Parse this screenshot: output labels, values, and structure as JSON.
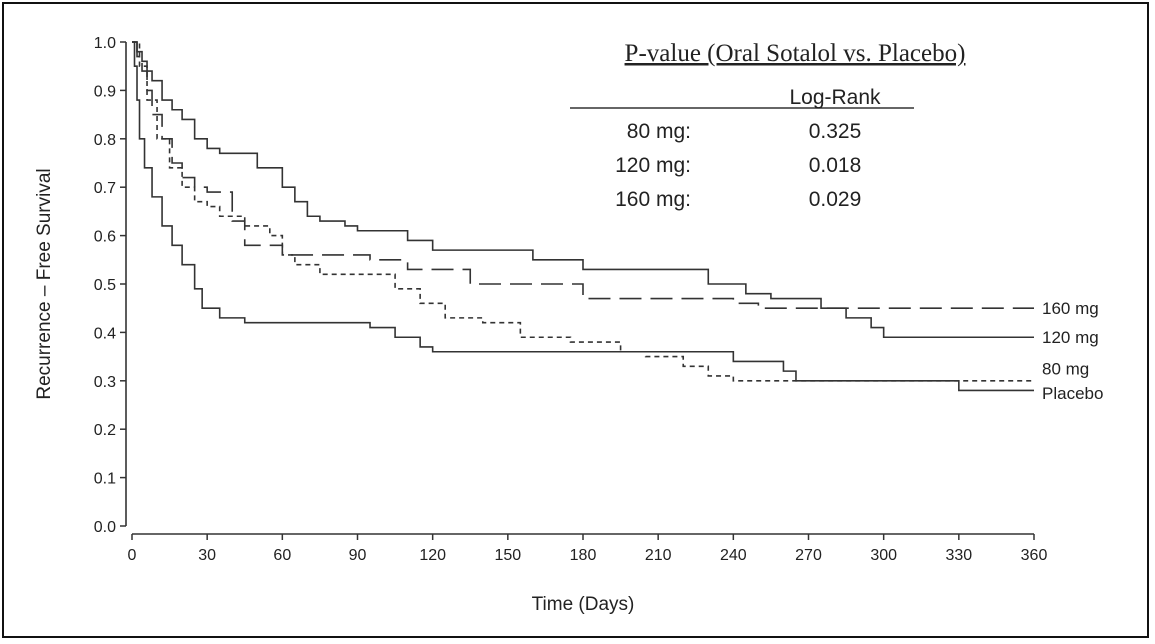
{
  "chart_data": {
    "type": "line",
    "title": "",
    "xlabel": "Time (Days)",
    "ylabel": "Recurrence – Free Survival",
    "xlim": [
      0,
      360
    ],
    "ylim": [
      0,
      1.0
    ],
    "xticks": [
      0,
      30,
      60,
      90,
      120,
      150,
      180,
      210,
      240,
      270,
      300,
      330,
      360
    ],
    "yticks": [
      "0.0",
      "0.1",
      "0.2",
      "0.3",
      "0.4",
      "0.5",
      "0.6",
      "0.7",
      "0.8",
      "0.9",
      "1.0"
    ],
    "grid": false,
    "legend": "end-of-line labels at right",
    "series": [
      {
        "name": "160 mg",
        "style": "long-dash",
        "points": [
          [
            0,
            1.0
          ],
          [
            2,
            0.97
          ],
          [
            4,
            0.94
          ],
          [
            6,
            0.9
          ],
          [
            8,
            0.85
          ],
          [
            12,
            0.8
          ],
          [
            16,
            0.75
          ],
          [
            20,
            0.72
          ],
          [
            25,
            0.7
          ],
          [
            30,
            0.69
          ],
          [
            40,
            0.63
          ],
          [
            45,
            0.58
          ],
          [
            55,
            0.58
          ],
          [
            60,
            0.56
          ],
          [
            90,
            0.56
          ],
          [
            95,
            0.55
          ],
          [
            110,
            0.53
          ],
          [
            120,
            0.53
          ],
          [
            135,
            0.5
          ],
          [
            175,
            0.5
          ],
          [
            180,
            0.47
          ],
          [
            235,
            0.47
          ],
          [
            240,
            0.46
          ],
          [
            250,
            0.45
          ],
          [
            360,
            0.45
          ]
        ]
      },
      {
        "name": "120 mg",
        "style": "solid",
        "points": [
          [
            0,
            1.0
          ],
          [
            2,
            0.98
          ],
          [
            4,
            0.96
          ],
          [
            6,
            0.94
          ],
          [
            8,
            0.92
          ],
          [
            12,
            0.88
          ],
          [
            16,
            0.86
          ],
          [
            20,
            0.84
          ],
          [
            25,
            0.8
          ],
          [
            30,
            0.78
          ],
          [
            35,
            0.77
          ],
          [
            45,
            0.77
          ],
          [
            50,
            0.74
          ],
          [
            60,
            0.7
          ],
          [
            65,
            0.67
          ],
          [
            70,
            0.64
          ],
          [
            75,
            0.63
          ],
          [
            85,
            0.62
          ],
          [
            90,
            0.61
          ],
          [
            110,
            0.59
          ],
          [
            120,
            0.57
          ],
          [
            160,
            0.55
          ],
          [
            170,
            0.55
          ],
          [
            180,
            0.53
          ],
          [
            220,
            0.53
          ],
          [
            230,
            0.5
          ],
          [
            245,
            0.48
          ],
          [
            255,
            0.47
          ],
          [
            275,
            0.45
          ],
          [
            285,
            0.43
          ],
          [
            295,
            0.41
          ],
          [
            300,
            0.39
          ],
          [
            360,
            0.39
          ]
        ]
      },
      {
        "name": "80 mg",
        "style": "short-dash",
        "points": [
          [
            0,
            1.0
          ],
          [
            3,
            0.95
          ],
          [
            6,
            0.88
          ],
          [
            10,
            0.8
          ],
          [
            15,
            0.74
          ],
          [
            20,
            0.7
          ],
          [
            25,
            0.67
          ],
          [
            30,
            0.66
          ],
          [
            35,
            0.64
          ],
          [
            45,
            0.62
          ],
          [
            55,
            0.6
          ],
          [
            60,
            0.56
          ],
          [
            65,
            0.54
          ],
          [
            75,
            0.52
          ],
          [
            95,
            0.52
          ],
          [
            105,
            0.49
          ],
          [
            115,
            0.46
          ],
          [
            125,
            0.43
          ],
          [
            140,
            0.42
          ],
          [
            155,
            0.39
          ],
          [
            175,
            0.38
          ],
          [
            195,
            0.36
          ],
          [
            205,
            0.35
          ],
          [
            220,
            0.33
          ],
          [
            230,
            0.31
          ],
          [
            240,
            0.3
          ],
          [
            255,
            0.3
          ],
          [
            265,
            0.3
          ],
          [
            330,
            0.3
          ],
          [
            360,
            0.3
          ]
        ]
      },
      {
        "name": "Placebo",
        "style": "solid",
        "points": [
          [
            0,
            1.0
          ],
          [
            1,
            0.95
          ],
          [
            2,
            0.88
          ],
          [
            3,
            0.8
          ],
          [
            5,
            0.74
          ],
          [
            8,
            0.68
          ],
          [
            12,
            0.62
          ],
          [
            16,
            0.58
          ],
          [
            20,
            0.54
          ],
          [
            25,
            0.49
          ],
          [
            28,
            0.45
          ],
          [
            35,
            0.43
          ],
          [
            45,
            0.42
          ],
          [
            90,
            0.42
          ],
          [
            95,
            0.41
          ],
          [
            105,
            0.39
          ],
          [
            115,
            0.37
          ],
          [
            120,
            0.36
          ],
          [
            200,
            0.36
          ],
          [
            235,
            0.36
          ],
          [
            240,
            0.34
          ],
          [
            260,
            0.32
          ],
          [
            265,
            0.3
          ],
          [
            325,
            0.3
          ],
          [
            330,
            0.28
          ],
          [
            360,
            0.28
          ]
        ]
      }
    ],
    "annotation": {
      "heading": "P-value (Oral Sotalol vs. Placebo)",
      "column_header": "Log-Rank",
      "rows": [
        {
          "dose": "80 mg:",
          "value": "0.325"
        },
        {
          "dose": "120 mg:",
          "value": "0.018"
        },
        {
          "dose": "160 mg:",
          "value": "0.029"
        }
      ]
    }
  }
}
